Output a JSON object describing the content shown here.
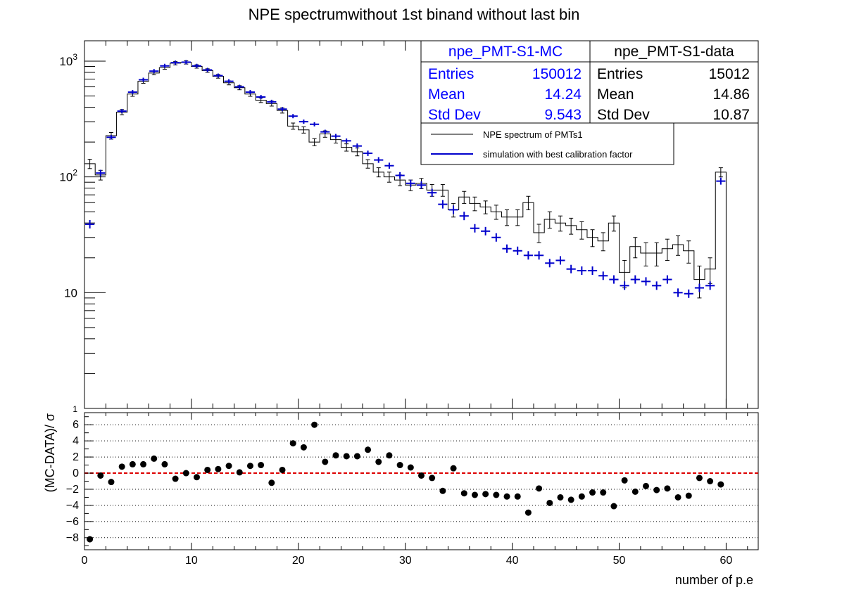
{
  "chart_data": [
    {
      "type": "histogram",
      "title": "NPE spectrumwithout 1st binand without last bin",
      "xlabel": "",
      "ylabel": "",
      "y_scale": "log",
      "ylim": [
        1,
        1500
      ],
      "xlim": [
        0,
        63
      ],
      "y_tick_labels": [
        "1",
        "10",
        "10^2",
        "10^3"
      ],
      "grid": false,
      "bin_width": 1,
      "series": [
        {
          "name": "NPE spectrum of PMTs1",
          "style": "step-histogram-with-errors",
          "color": "#000000",
          "x": [
            0.5,
            1.5,
            2.5,
            3.5,
            4.5,
            5.5,
            6.5,
            7.5,
            8.5,
            9.5,
            10.5,
            11.5,
            12.5,
            13.5,
            14.5,
            15.5,
            16.5,
            17.5,
            18.5,
            19.5,
            20.5,
            21.5,
            22.5,
            23.5,
            24.5,
            25.5,
            26.5,
            27.5,
            28.5,
            29.5,
            30.5,
            31.5,
            32.5,
            33.5,
            34.5,
            35.5,
            36.5,
            37.5,
            38.5,
            39.5,
            40.5,
            41.5,
            42.5,
            43.5,
            44.5,
            45.5,
            46.5,
            47.5,
            48.5,
            49.5,
            50.5,
            51.5,
            52.5,
            53.5,
            54.5,
            55.5,
            56.5,
            57.5,
            58.5,
            59.5
          ],
          "values": [
            130,
            104,
            227,
            363,
            520,
            670,
            790,
            880,
            960,
            975,
            900,
            830,
            740,
            650,
            590,
            520,
            460,
            430,
            375,
            275,
            255,
            200,
            235,
            210,
            180,
            165,
            130,
            110,
            100,
            94,
            85,
            88,
            77,
            77,
            52,
            67,
            59,
            55,
            50,
            45,
            45,
            60,
            33,
            43,
            40,
            38,
            35,
            30,
            28,
            40,
            15,
            25,
            22,
            22,
            24,
            26,
            23,
            13,
            16,
            110
          ],
          "errors": [
            12,
            10,
            15,
            19,
            23,
            26,
            28,
            30,
            31,
            31,
            30,
            29,
            27,
            26,
            24,
            23,
            21,
            21,
            19,
            17,
            16,
            14,
            15,
            14,
            13,
            13,
            11,
            10,
            10,
            10,
            9,
            9,
            9,
            9,
            7,
            8,
            8,
            7,
            7,
            7,
            7,
            8,
            6,
            7,
            6,
            6,
            6,
            5,
            5,
            6,
            4,
            5,
            5,
            5,
            5,
            5,
            5,
            4,
            4,
            10
          ]
        },
        {
          "name": "simulation with best calibration factor",
          "style": "points-with-errors",
          "color": "#0000cc",
          "x": [
            0.5,
            1.5,
            2.5,
            3.5,
            4.5,
            5.5,
            6.5,
            7.5,
            8.5,
            9.5,
            10.5,
            11.5,
            12.5,
            13.5,
            14.5,
            15.5,
            16.5,
            17.5,
            18.5,
            19.5,
            20.5,
            21.5,
            22.5,
            23.5,
            24.5,
            25.5,
            26.5,
            27.5,
            28.5,
            29.5,
            30.5,
            31.5,
            32.5,
            33.5,
            34.5,
            35.5,
            36.5,
            37.5,
            38.5,
            39.5,
            40.5,
            41.5,
            42.5,
            43.5,
            44.5,
            45.5,
            46.5,
            47.5,
            48.5,
            49.5,
            50.5,
            51.5,
            52.5,
            53.5,
            54.5,
            55.5,
            56.5,
            57.5,
            58.5,
            59.5
          ],
          "values": [
            39,
            108,
            220,
            370,
            540,
            690,
            820,
            910,
            970,
            980,
            910,
            840,
            750,
            670,
            600,
            540,
            490,
            445,
            385,
            335,
            300,
            285,
            245,
            225,
            205,
            185,
            160,
            140,
            125,
            103,
            88,
            85,
            73,
            58,
            52,
            46,
            36,
            34,
            30,
            24,
            23,
            21,
            21,
            18,
            19,
            16,
            15.5,
            15.5,
            14,
            13,
            11.5,
            13,
            12.5,
            11.5,
            13,
            10,
            9.8,
            11,
            11.5,
            92
          ]
        }
      ],
      "stat_boxes": [
        {
          "title": "npe_PMT-S1-MC",
          "color": "#0000ff",
          "rows": [
            {
              "label": "Entries",
              "value": "150012"
            },
            {
              "label": "Mean",
              "value": "14.24"
            },
            {
              "label": "Std Dev",
              "value": "9.543"
            }
          ]
        },
        {
          "title": "npe_PMT-S1-data",
          "color": "#000000",
          "rows": [
            {
              "label": "Entries",
              "value": "15012"
            },
            {
              "label": "Mean",
              "value": "14.86"
            },
            {
              "label": "Std Dev",
              "value": "10.87"
            }
          ]
        }
      ],
      "legend": {
        "placement": "top-right",
        "entries": [
          {
            "label": "NPE spectrum of PMTs1",
            "color": "#000000"
          },
          {
            "label": "simulation with best calibration factor",
            "color": "#0000cc"
          }
        ]
      }
    },
    {
      "type": "scatter",
      "title": "",
      "xlabel": "number of p.e",
      "ylabel": "(MC-DATA)/ σ",
      "xlim": [
        0,
        63
      ],
      "ylim": [
        -9.5,
        7.5
      ],
      "x_ticks": [
        0,
        10,
        20,
        30,
        40,
        50,
        60
      ],
      "y_ticks": [
        -8,
        -6,
        -4,
        -2,
        0,
        2,
        4,
        6
      ],
      "grid": "horizontal dotted",
      "reference_line": {
        "y": 0,
        "color": "#dd0000",
        "style": "dashed"
      },
      "series": [
        {
          "name": "",
          "color": "#000000",
          "x": [
            0.5,
            1.5,
            2.5,
            3.5,
            4.5,
            5.5,
            6.5,
            7.5,
            8.5,
            9.5,
            10.5,
            11.5,
            12.5,
            13.5,
            14.5,
            15.5,
            16.5,
            17.5,
            18.5,
            19.5,
            20.5,
            21.5,
            22.5,
            23.5,
            24.5,
            25.5,
            26.5,
            27.5,
            28.5,
            29.5,
            30.5,
            31.5,
            32.5,
            33.5,
            34.5,
            35.5,
            36.5,
            37.5,
            38.5,
            39.5,
            40.5,
            41.5,
            42.5,
            43.5,
            44.5,
            45.5,
            46.5,
            47.5,
            48.5,
            49.5,
            50.5,
            51.5,
            52.5,
            53.5,
            54.5,
            55.5,
            56.5,
            57.5,
            58.5,
            59.5
          ],
          "values": [
            -8.2,
            -0.3,
            -1.1,
            0.8,
            1.1,
            1.1,
            1.8,
            1.1,
            -0.7,
            0.0,
            -0.5,
            0.4,
            0.5,
            0.9,
            0.1,
            0.9,
            1.0,
            -1.2,
            0.4,
            3.7,
            3.2,
            6.0,
            1.4,
            2.2,
            2.1,
            2.1,
            2.9,
            1.4,
            2.2,
            1.0,
            0.7,
            -0.3,
            -0.6,
            -2.2,
            0.6,
            -2.5,
            -2.7,
            -2.6,
            -2.7,
            -2.9,
            -2.9,
            -4.9,
            -1.9,
            -3.7,
            -3.0,
            -3.3,
            -2.9,
            -2.4,
            -2.4,
            -4.1,
            -0.9,
            -2.3,
            -1.6,
            -2.1,
            -1.9,
            -3.0,
            -2.8,
            -0.6,
            -1.0,
            -1.4
          ]
        }
      ]
    }
  ]
}
